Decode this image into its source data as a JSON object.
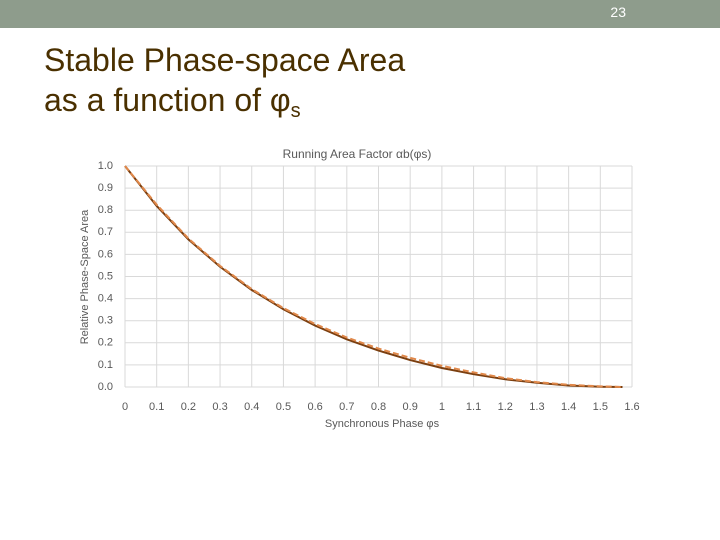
{
  "slide": {
    "number": "23",
    "title_line1": "Stable Phase-space Area",
    "title_line2": "as a function of φ",
    "title_sub": "s"
  },
  "chart_data": {
    "type": "line",
    "title": "Running Area Factor αb(φs)",
    "x_label": "Synchronous Phase φs",
    "y_label": "Relative Phase-Space Area",
    "x": [
      0,
      0.1,
      0.2,
      0.3,
      0.4,
      0.5,
      0.6,
      0.7,
      0.8,
      0.9,
      1.0,
      1.1,
      1.2,
      1.3,
      1.4,
      1.5,
      1.57
    ],
    "series": [
      {
        "color": "#7b3f10",
        "dash": false,
        "values": [
          1.0,
          0.819,
          0.668,
          0.544,
          0.439,
          0.352,
          0.278,
          0.216,
          0.165,
          0.122,
          0.086,
          0.058,
          0.035,
          0.019,
          0.007,
          0.001,
          0
        ]
      },
      {
        "color": "#e0884a",
        "dash": true,
        "values": [
          1.0,
          0.825,
          0.672,
          0.548,
          0.443,
          0.357,
          0.285,
          0.224,
          0.174,
          0.132,
          0.096,
          0.066,
          0.04,
          0.022,
          0.01,
          0.003,
          0
        ]
      }
    ],
    "xlim": [
      0,
      1.6
    ],
    "xticks": [
      0,
      0.1,
      0.2,
      0.3,
      0.4,
      0.5,
      0.6,
      0.7,
      0.8,
      0.9,
      1,
      1.1,
      1.2,
      1.3,
      1.4,
      1.5,
      1.6
    ],
    "ylim": [
      0,
      1.0
    ],
    "yticks": [
      {
        "value": 0,
        "label": "0.0"
      },
      0.1,
      0.2,
      0.3,
      0.4,
      0.5,
      0.6,
      0.7,
      0.8,
      0.9,
      {
        "value": 1,
        "label": "1.0"
      }
    ],
    "grid": true
  }
}
